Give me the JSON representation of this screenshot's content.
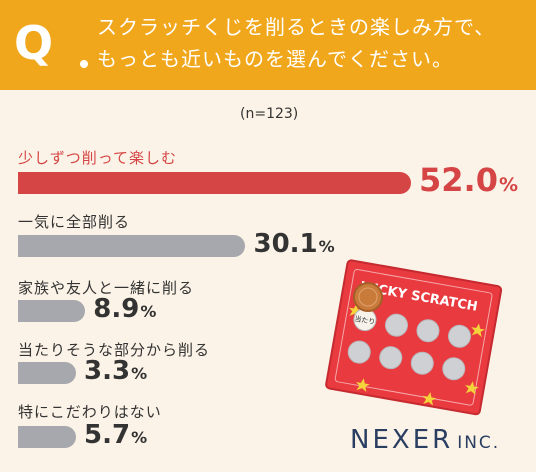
{
  "question": {
    "mark": "Q",
    "line1": "スクラッチくじを削るときの楽しみ方で、",
    "line2": "もっとも近いものを選んでください。"
  },
  "sample_size": "(n=123)",
  "colors": {
    "header": "#f0a71c",
    "top_bar": "#d64545",
    "other_bar": "#a7a8ad",
    "background": "#fbf3e7",
    "logo": "#2a3e62"
  },
  "chart_data": {
    "type": "bar",
    "orientation": "horizontal",
    "categories": [
      "少しずつ削って楽しむ",
      "一気に全部削る",
      "家族や友人と一緒に削る",
      "当たりそうな部分から削る",
      "特にこだわりはない"
    ],
    "values": [
      52.0,
      30.1,
      8.9,
      3.3,
      5.7
    ],
    "value_labels": [
      "52.0",
      "30.1",
      "8.9",
      "3.3",
      "5.7"
    ],
    "unit": "%",
    "title": "",
    "xlabel": "",
    "ylabel": "",
    "grid": false,
    "legend": "none"
  },
  "illustration": {
    "card_text": "LUCKY SCRATCH",
    "coin_text": "当たり"
  },
  "logo": {
    "main": "NEXER",
    "sub": "INC."
  }
}
